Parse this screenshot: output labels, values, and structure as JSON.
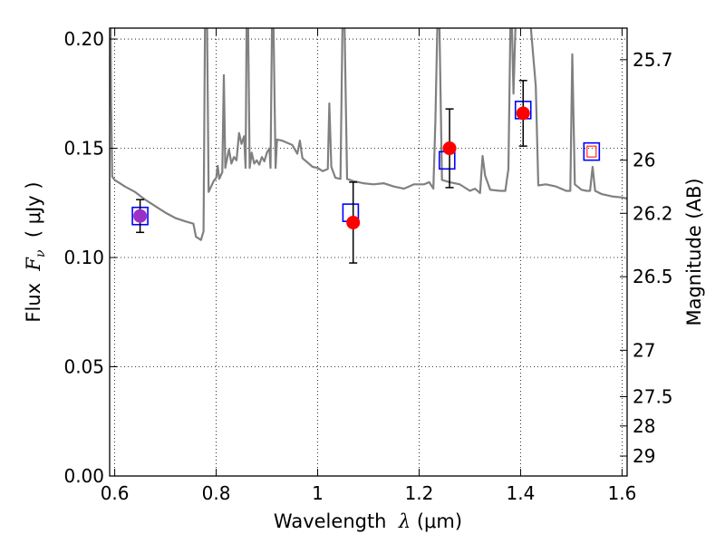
{
  "chart_data": {
    "type": "scatter",
    "title": "",
    "xlabel": {
      "prefix": "Wavelength  ",
      "symbol": "λ",
      "suffix": " (μm)"
    },
    "ylabel": {
      "prefix": "Flux  ",
      "symbol": "F",
      "sub": "ν",
      "suffix": "  ( μJy )"
    },
    "y2label": "Magnitude (AB)",
    "xlim": [
      0.59,
      1.61
    ],
    "ylim": [
      0.0,
      0.205
    ],
    "grid": true,
    "x_ticks": [
      {
        "v": 0.6,
        "label": "0.6"
      },
      {
        "v": 0.8,
        "label": "0.8"
      },
      {
        "v": 1.0,
        "label": "1"
      },
      {
        "v": 1.2,
        "label": "1.2"
      },
      {
        "v": 1.4,
        "label": "1.4"
      },
      {
        "v": 1.6,
        "label": "1.6"
      }
    ],
    "y_ticks": [
      {
        "v": 0.0,
        "label": "0.00"
      },
      {
        "v": 0.05,
        "label": "0.05"
      },
      {
        "v": 0.1,
        "label": "0.10"
      },
      {
        "v": 0.15,
        "label": "0.15"
      },
      {
        "v": 0.2,
        "label": "0.20"
      }
    ],
    "y2_ticks": [
      {
        "mag": 25.7,
        "label": "25.7"
      },
      {
        "mag": 26,
        "label": "26"
      },
      {
        "mag": 26.2,
        "label": "26.2"
      },
      {
        "mag": 26.5,
        "label": "26.5"
      },
      {
        "mag": 27,
        "label": "27"
      },
      {
        "mag": 27.5,
        "label": "27.5"
      },
      {
        "mag": 28,
        "label": "28"
      },
      {
        "mag": 29,
        "label": "29"
      }
    ],
    "observed": [
      {
        "x": 0.65,
        "y": 0.119,
        "err": 0.0075,
        "color": "#9b30c8"
      },
      {
        "x": 1.07,
        "y": 0.116,
        "err": 0.0185,
        "color": "#ff0000"
      },
      {
        "x": 1.26,
        "y": 0.15,
        "err": 0.018,
        "color": "#ff0000"
      },
      {
        "x": 1.405,
        "y": 0.166,
        "err": 0.015,
        "color": "#ff0000"
      }
    ],
    "model_boxes": [
      {
        "x": 0.65,
        "y": 0.119,
        "edge": "#0000ff"
      },
      {
        "x": 1.065,
        "y": 0.1205,
        "edge": "#0000ff"
      },
      {
        "x": 1.255,
        "y": 0.1445,
        "edge": "#0000ff"
      },
      {
        "x": 1.405,
        "y": 0.1675,
        "edge": "#0000ff"
      },
      {
        "x": 1.54,
        "y": 0.1485,
        "edge": "#0000ff"
      }
    ],
    "model_inner_box": {
      "x": 1.54,
      "y": 0.1485,
      "edge": "#ff0000"
    },
    "spectrum": {
      "color": "#808080",
      "points": [
        [
          0.592,
          0.206
        ],
        [
          0.593,
          0.17
        ],
        [
          0.595,
          0.137
        ],
        [
          0.6,
          0.1355
        ],
        [
          0.61,
          0.134
        ],
        [
          0.62,
          0.1325
        ],
        [
          0.64,
          0.13
        ],
        [
          0.66,
          0.1265
        ],
        [
          0.68,
          0.1235
        ],
        [
          0.7,
          0.1205
        ],
        [
          0.72,
          0.118
        ],
        [
          0.74,
          0.1165
        ],
        [
          0.755,
          0.1155
        ],
        [
          0.76,
          0.1095
        ],
        [
          0.77,
          0.108
        ],
        [
          0.775,
          0.112
        ],
        [
          0.778,
          0.206
        ],
        [
          0.782,
          0.206
        ],
        [
          0.785,
          0.13
        ],
        [
          0.795,
          0.135
        ],
        [
          0.8,
          0.1365
        ],
        [
          0.803,
          0.142
        ],
        [
          0.806,
          0.136
        ],
        [
          0.812,
          0.139
        ],
        [
          0.815,
          0.1835
        ],
        [
          0.818,
          0.141
        ],
        [
          0.825,
          0.1495
        ],
        [
          0.83,
          0.143
        ],
        [
          0.835,
          0.146
        ],
        [
          0.84,
          0.1445
        ],
        [
          0.845,
          0.157
        ],
        [
          0.85,
          0.152
        ],
        [
          0.855,
          0.1555
        ],
        [
          0.858,
          0.141
        ],
        [
          0.86,
          0.206
        ],
        [
          0.863,
          0.206
        ],
        [
          0.866,
          0.141
        ],
        [
          0.87,
          0.148
        ],
        [
          0.875,
          0.143
        ],
        [
          0.88,
          0.1445
        ],
        [
          0.885,
          0.1425
        ],
        [
          0.89,
          0.146
        ],
        [
          0.895,
          0.144
        ],
        [
          0.9,
          0.148
        ],
        [
          0.905,
          0.15
        ],
        [
          0.907,
          0.141
        ],
        [
          0.91,
          0.206
        ],
        [
          0.913,
          0.206
        ],
        [
          0.917,
          0.141
        ],
        [
          0.92,
          0.154
        ],
        [
          0.93,
          0.1535
        ],
        [
          0.95,
          0.1515
        ],
        [
          0.96,
          0.1475
        ],
        [
          0.965,
          0.1535
        ],
        [
          0.97,
          0.1455
        ],
        [
          0.98,
          0.1435
        ],
        [
          0.99,
          0.1415
        ],
        [
          1.0,
          0.141
        ],
        [
          1.01,
          0.1395
        ],
        [
          1.02,
          0.1405
        ],
        [
          1.023,
          0.1705
        ],
        [
          1.027,
          0.1415
        ],
        [
          1.035,
          0.1365
        ],
        [
          1.045,
          0.136
        ],
        [
          1.049,
          0.206
        ],
        [
          1.053,
          0.206
        ],
        [
          1.058,
          0.136
        ],
        [
          1.07,
          0.135
        ],
        [
          1.09,
          0.134
        ],
        [
          1.11,
          0.1335
        ],
        [
          1.13,
          0.134
        ],
        [
          1.15,
          0.1325
        ],
        [
          1.17,
          0.1315
        ],
        [
          1.19,
          0.1335
        ],
        [
          1.21,
          0.1335
        ],
        [
          1.22,
          0.1345
        ],
        [
          1.228,
          0.1315
        ],
        [
          1.232,
          0.162
        ],
        [
          1.236,
          0.206
        ],
        [
          1.24,
          0.206
        ],
        [
          1.245,
          0.1355
        ],
        [
          1.26,
          0.1345
        ],
        [
          1.28,
          0.1335
        ],
        [
          1.3,
          0.1305
        ],
        [
          1.31,
          0.1315
        ],
        [
          1.32,
          0.1295
        ],
        [
          1.325,
          0.1465
        ],
        [
          1.33,
          0.1375
        ],
        [
          1.34,
          0.131
        ],
        [
          1.36,
          0.1305
        ],
        [
          1.37,
          0.1305
        ],
        [
          1.376,
          0.1405
        ],
        [
          1.38,
          0.206
        ],
        [
          1.383,
          0.206
        ],
        [
          1.386,
          0.175
        ],
        [
          1.39,
          0.206
        ],
        [
          1.41,
          0.206
        ],
        [
          1.42,
          0.206
        ],
        [
          1.43,
          0.1785
        ],
        [
          1.435,
          0.133
        ],
        [
          1.45,
          0.1335
        ],
        [
          1.47,
          0.1325
        ],
        [
          1.49,
          0.1305
        ],
        [
          1.498,
          0.1305
        ],
        [
          1.502,
          0.193
        ],
        [
          1.507,
          0.1335
        ],
        [
          1.52,
          0.131
        ],
        [
          1.53,
          0.1305
        ],
        [
          1.537,
          0.1305
        ],
        [
          1.542,
          0.1415
        ],
        [
          1.547,
          0.1305
        ],
        [
          1.56,
          0.129
        ],
        [
          1.58,
          0.128
        ],
        [
          1.6,
          0.1275
        ],
        [
          1.61,
          0.127
        ]
      ]
    }
  }
}
